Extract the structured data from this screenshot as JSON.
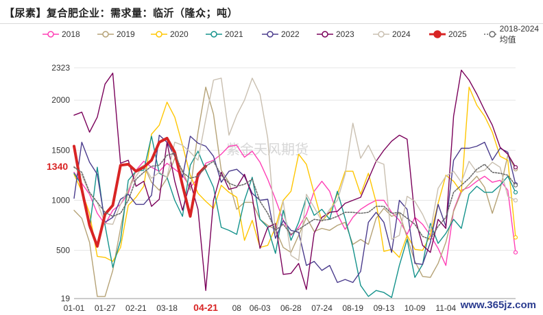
{
  "title": "【尿素】复合肥企业：需求量：临沂（隆众；吨）",
  "watermark_text": "紫金天风期货",
  "site_watermark": "www.365jz.com",
  "chart_data": {
    "type": "line",
    "title": "【尿素】复合肥企业：需求量：临沂（隆众；吨）",
    "xlabel": "",
    "ylabel": "",
    "ylim": [
      19,
      2323
    ],
    "y_ticks": [
      19,
      500,
      1000,
      1500,
      2000,
      2323
    ],
    "x_ticks": [
      {
        "label": "01-01",
        "i": 0
      },
      {
        "label": "01-27",
        "i": 4
      },
      {
        "label": "02-21",
        "i": 8
      },
      {
        "label": "03-18",
        "i": 12
      },
      {
        "label": "04-21",
        "i": 17
      },
      {
        "label": "08",
        "i": 21
      },
      {
        "label": "06-03",
        "i": 24
      },
      {
        "label": "06-28",
        "i": 28
      },
      {
        "label": "07-24",
        "i": 32
      },
      {
        "label": "08-19",
        "i": 36
      },
      {
        "label": "09-13",
        "i": 40
      },
      {
        "label": "10-09",
        "i": 44
      },
      {
        "label": "11-04",
        "i": 48
      }
    ],
    "highlight_tick": "04-21",
    "latest_label": "1340",
    "n_points": 58,
    "legend_position": "top",
    "grid": true,
    "series": [
      {
        "name": "2018",
        "color": "#ff3eb5",
        "width": 1.4,
        "dash": "",
        "marker": "circle",
        "values": [
          1280,
          1170,
          1060,
          870,
          760,
          900,
          960,
          1070,
          1300,
          1390,
          1330,
          1290,
          1370,
          1310,
          1250,
          1130,
          1220,
          1370,
          1400,
          1460,
          1540,
          1550,
          1430,
          1490,
          1380,
          1210,
          1010,
          800,
          650,
          730,
          860,
          1090,
          1190,
          1090,
          860,
          710,
          830,
          910,
          960,
          1000,
          1000,
          880,
          800,
          660,
          830,
          760,
          650,
          520,
          350,
          900,
          1100,
          1130,
          1190,
          1240,
          1180,
          1200,
          1100,
          480
        ]
      },
      {
        "name": "2019",
        "color": "#b5a276",
        "width": 1.4,
        "dash": "",
        "marker": "circle",
        "values": [
          900,
          820,
          580,
          40,
          40,
          300,
          720,
          1100,
          1300,
          1350,
          1180,
          1100,
          1220,
          1420,
          1300,
          1100,
          1680,
          2130,
          1860,
          1300,
          1180,
          910,
          980,
          980,
          810,
          750,
          710,
          530,
          480,
          650,
          830,
          690,
          720,
          700,
          750,
          780,
          560,
          610,
          560,
          820,
          920,
          840,
          870,
          630,
          390,
          240,
          230,
          370,
          580,
          890,
          1080,
          1160,
          1240,
          1130,
          870,
          1110,
          1450,
          1310
        ]
      },
      {
        "name": "2020",
        "color": "#ffc600",
        "width": 1.4,
        "dash": "",
        "marker": "circle",
        "values": [
          1260,
          1090,
          870,
          440,
          430,
          390,
          530,
          950,
          1030,
          1140,
          1660,
          1750,
          1980,
          1830,
          1550,
          1250,
          1070,
          990,
          920,
          1150,
          1080,
          1030,
          600,
          800,
          530,
          550,
          730,
          1000,
          1090,
          1460,
          1360,
          1070,
          790,
          880,
          1060,
          1290,
          1290,
          1060,
          1270,
          980,
          490,
          510,
          430,
          650,
          510,
          500,
          650,
          970,
          1250,
          1190,
          1080,
          2130,
          1950,
          1840,
          1680,
          1440,
          1400,
          630
        ]
      },
      {
        "name": "2021",
        "color": "#14928b",
        "width": 1.4,
        "dash": "",
        "marker": "circle",
        "values": [
          1270,
          1150,
          720,
          1330,
          750,
          330,
          600,
          1200,
          1290,
          1300,
          1640,
          1270,
          1230,
          1000,
          840,
          1350,
          1490,
          1300,
          1130,
          730,
          700,
          660,
          1000,
          1230,
          810,
          730,
          470,
          900,
          600,
          780,
          1030,
          850,
          910,
          810,
          1090,
          820,
          530,
          150,
          40,
          100,
          80,
          30,
          350,
          610,
          230,
          360,
          770,
          570,
          670,
          810,
          720,
          1060,
          1140,
          1080,
          1080,
          1150,
          1240,
          1080
        ]
      },
      {
        "name": "2022",
        "color": "#4a3b8c",
        "width": 1.4,
        "dash": "",
        "marker": "circle",
        "values": [
          1020,
          1580,
          1380,
          1260,
          780,
          830,
          1010,
          1060,
          960,
          960,
          1050,
          1650,
          1580,
          1440,
          1230,
          1640,
          1570,
          1540,
          1440,
          1180,
          1290,
          1310,
          1240,
          1070,
          1000,
          1010,
          620,
          800,
          700,
          680,
          350,
          390,
          300,
          350,
          180,
          210,
          180,
          290,
          780,
          880,
          780,
          480,
          1000,
          910,
          370,
          360,
          580,
          960,
          740,
          1400,
          1520,
          1520,
          1540,
          1580,
          1400,
          1520,
          1480,
          1160
        ]
      },
      {
        "name": "2023",
        "color": "#7a005a",
        "width": 1.4,
        "dash": "",
        "marker": "circle",
        "values": [
          1850,
          1880,
          1680,
          1830,
          2160,
          2270,
          1370,
          1400,
          1140,
          1190,
          940,
          1010,
          1580,
          1190,
          900,
          1180,
          910,
          100,
          1000,
          1280,
          1110,
          1130,
          1260,
          1040,
          520,
          730,
          770,
          260,
          270,
          370,
          110,
          670,
          830,
          880,
          890,
          970,
          1000,
          1030,
          1210,
          1390,
          1500,
          1590,
          1650,
          1610,
          830,
          550,
          480,
          810,
          720,
          1840,
          2300,
          2200,
          2060,
          1900,
          1750,
          1530,
          1460,
          1330
        ]
      },
      {
        "name": "2024",
        "color": "#c9bfb0",
        "width": 1.4,
        "dash": "",
        "marker": "circle",
        "values": [
          1340,
          1250,
          1070,
          980,
          770,
          760,
          960,
          1110,
          1240,
          1350,
          1220,
          1280,
          1230,
          1580,
          1550,
          1480,
          1400,
          1810,
          2200,
          2220,
          1650,
          1850,
          2000,
          2220,
          2060,
          1620,
          660,
          990,
          450,
          400,
          1060,
          930,
          790,
          910,
          1000,
          1260,
          1770,
          1420,
          1550,
          1390,
          1360,
          610,
          650,
          1040,
          990,
          860,
          690,
          1120,
          1240,
          1290,
          1180,
          1390,
          1280,
          1300,
          1380,
          1330,
          1040,
          1000
        ]
      },
      {
        "name": "2025",
        "color": "#d82424",
        "width": 4,
        "dash": "",
        "marker": "none",
        "values": [
          1540,
          1110,
          750,
          540,
          860,
          950,
          1350,
          1360,
          1290,
          1330,
          1400,
          1580,
          1620,
          1480,
          1150,
          840,
          1260,
          1340
        ]
      },
      {
        "name": "2018-2024均值",
        "color": "#6a6a6a",
        "width": 1.6,
        "dash": "2,2",
        "marker": "circle",
        "values": [
          1330,
          1280,
          1080,
          980,
          880,
          840,
          870,
          1000,
          1210,
          1280,
          1340,
          1350,
          1450,
          1470,
          1280,
          1220,
          1240,
          1340,
          1390,
          1250,
          1170,
          1140,
          1160,
          1210,
          990,
          870,
          700,
          760,
          660,
          710,
          760,
          810,
          800,
          810,
          840,
          880,
          880,
          870,
          880,
          940,
          940,
          870,
          880,
          820,
          760,
          640,
          610,
          740,
          830,
          1080,
          1150,
          1220,
          1310,
          1360,
          1280,
          1270,
          1250,
          1150
        ]
      }
    ]
  }
}
